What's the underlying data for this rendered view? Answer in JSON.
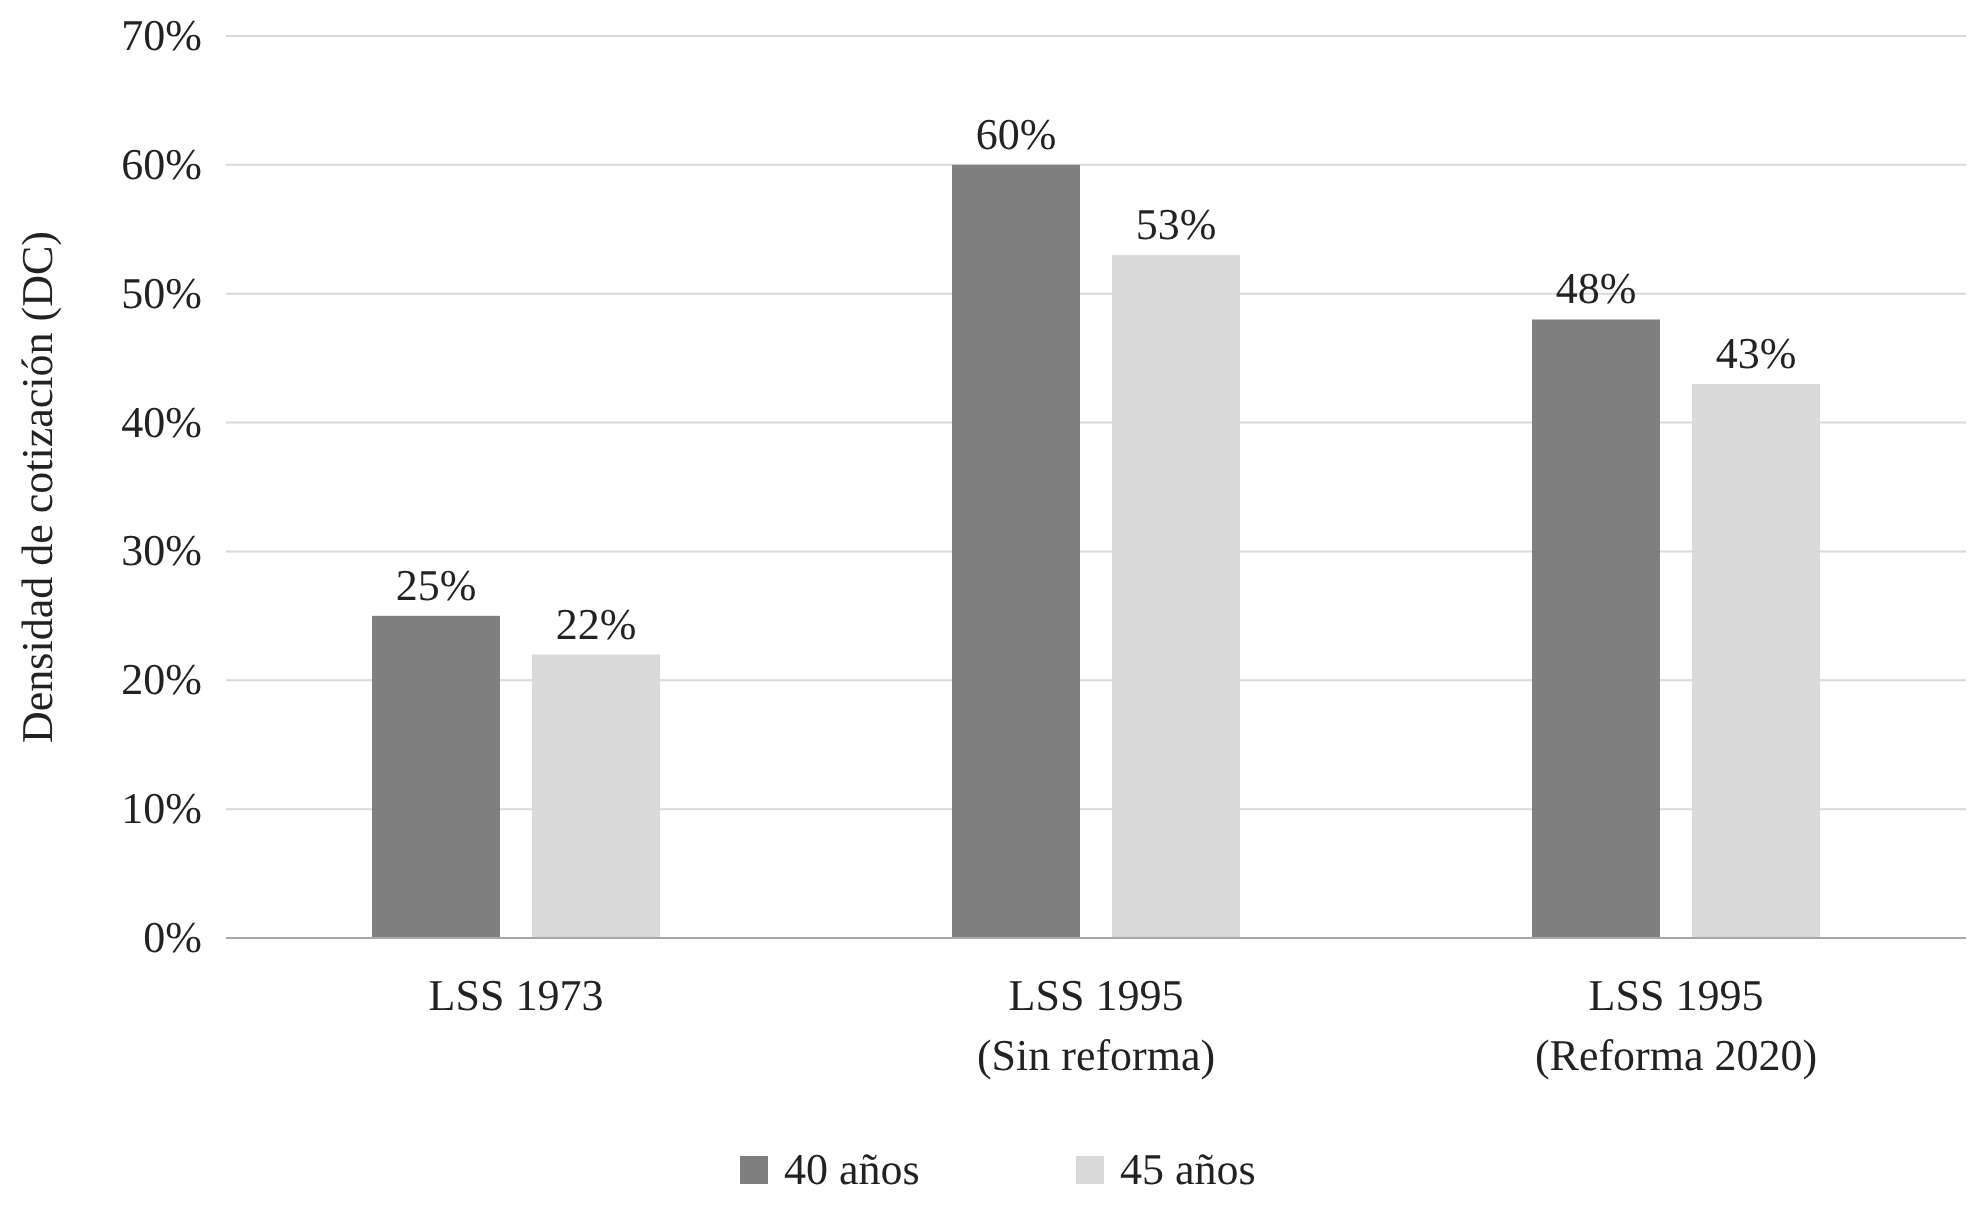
{
  "chart_data": {
    "type": "bar",
    "ylabel": "Densidad de cotización (DC)",
    "categories": [
      "LSS 1973",
      "LSS 1995\n(Sin reforma)",
      "LSS 1995\n(Reforma 2020)"
    ],
    "series": [
      {
        "name": "40 años",
        "color": "#7f7f7f",
        "values": [
          25,
          60,
          48
        ],
        "value_labels": [
          "25%",
          "60%",
          "48%"
        ]
      },
      {
        "name": "45 años",
        "color": "#d9d9d9",
        "values": [
          22,
          53,
          43
        ],
        "value_labels": [
          "22%",
          "53%",
          "43%"
        ]
      }
    ],
    "ylim": [
      0,
      70
    ],
    "yticks": [
      {
        "value": 0,
        "label": "0%"
      },
      {
        "value": 10,
        "label": "10%"
      },
      {
        "value": 20,
        "label": "20%"
      },
      {
        "value": 30,
        "label": "30%"
      },
      {
        "value": 40,
        "label": "40%"
      },
      {
        "value": 50,
        "label": "50%"
      },
      {
        "value": 60,
        "label": "60%"
      },
      {
        "value": 70,
        "label": "70%"
      }
    ],
    "grid": "y",
    "legend": "bottom"
  }
}
